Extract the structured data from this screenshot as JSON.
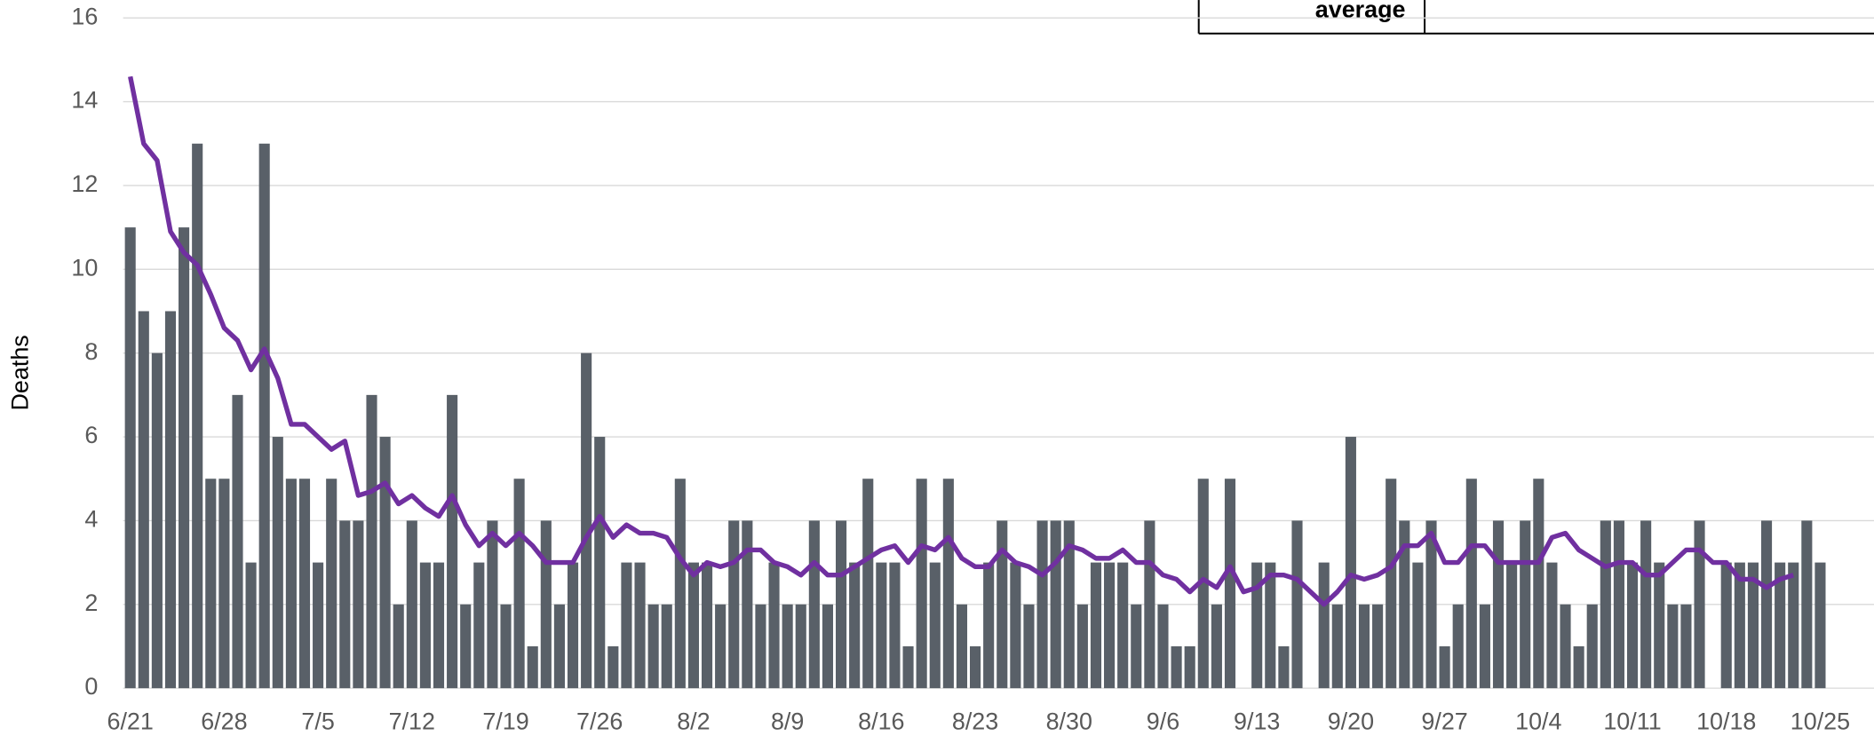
{
  "chart_data": {
    "type": "bar_line",
    "y_label": "Deaths",
    "legend_text": "average",
    "categories": [
      "6/21",
      null,
      null,
      null,
      null,
      null,
      null,
      "6/28",
      null,
      null,
      null,
      null,
      null,
      null,
      "7/5",
      null,
      null,
      null,
      null,
      null,
      null,
      "7/12",
      null,
      null,
      null,
      null,
      null,
      null,
      "7/19",
      null,
      null,
      null,
      null,
      null,
      null,
      "7/26",
      null,
      null,
      null,
      null,
      null,
      null,
      "8/2",
      null,
      null,
      null,
      null,
      null,
      null,
      "8/9",
      null,
      null,
      null,
      null,
      null,
      null,
      "8/16",
      null,
      null,
      null,
      null,
      null,
      null,
      "8/23",
      null,
      null,
      null,
      null,
      null,
      null,
      "8/30",
      null,
      null,
      null,
      null,
      null,
      null,
      "9/6",
      null,
      null,
      null,
      null,
      null,
      null,
      "9/13",
      null,
      null,
      null,
      null,
      null,
      null,
      "9/20",
      null,
      null,
      null,
      null,
      null,
      null,
      "9/27",
      null,
      null,
      null,
      null,
      null,
      null,
      "10/4",
      null,
      null,
      null,
      null,
      null,
      null,
      "10/11",
      null,
      null,
      null,
      null,
      null,
      null,
      "10/18",
      null,
      null,
      null,
      null,
      null,
      null,
      "10/25"
    ],
    "series": [
      {
        "type": "bar",
        "color": "#596068",
        "values": [
          11,
          9,
          8,
          9,
          11,
          13,
          5,
          5,
          7,
          3,
          13,
          6,
          5,
          5,
          3,
          5,
          4,
          4,
          7,
          6,
          2,
          4,
          3,
          3,
          7,
          2,
          3,
          4,
          2,
          5,
          1,
          4,
          2,
          3,
          8,
          6,
          1,
          3,
          3,
          2,
          2,
          5,
          3,
          3,
          2,
          4,
          4,
          2,
          3,
          2,
          2,
          4,
          2,
          4,
          3,
          5,
          3,
          3,
          1,
          5,
          3,
          5,
          2,
          1,
          3,
          4,
          3,
          2,
          4,
          4,
          4,
          2,
          3,
          3,
          3,
          2,
          4,
          2,
          1,
          1,
          5,
          2,
          5,
          0,
          3,
          3,
          1,
          4,
          0,
          3,
          2,
          6,
          2,
          2,
          5,
          4,
          3,
          4,
          1,
          2,
          5,
          2,
          4,
          3,
          4,
          5,
          3,
          2,
          1,
          2,
          4,
          4,
          3,
          4,
          3,
          2,
          2,
          4,
          0,
          3,
          3,
          3,
          4,
          3,
          3,
          4,
          3
        ]
      },
      {
        "type": "line",
        "color": "#7030a0",
        "values": [
          14.6,
          13,
          12.6,
          10.9,
          10.4,
          10.1,
          9.4,
          8.6,
          8.3,
          7.6,
          8.1,
          7.4,
          6.3,
          6.3,
          6.0,
          5.7,
          5.9,
          4.6,
          4.7,
          4.9,
          4.4,
          4.6,
          4.3,
          4.1,
          4.6,
          3.9,
          3.4,
          3.7,
          3.4,
          3.7,
          3.4,
          3.0,
          3.0,
          3.0,
          3.6,
          4.1,
          3.6,
          3.9,
          3.7,
          3.7,
          3.6,
          3.1,
          2.7,
          3.0,
          2.9,
          3.0,
          3.3,
          3.3,
          3.0,
          2.9,
          2.7,
          3.0,
          2.7,
          2.7,
          2.9,
          3.1,
          3.3,
          3.4,
          3.0,
          3.4,
          3.3,
          3.6,
          3.1,
          2.9,
          2.9,
          3.3,
          3.0,
          2.9,
          2.7,
          3.0,
          3.4,
          3.3,
          3.1,
          3.1,
          3.3,
          3.0,
          3.0,
          2.7,
          2.6,
          2.3,
          2.6,
          2.4,
          2.9,
          2.3,
          2.4,
          2.7,
          2.7,
          2.6,
          2.3,
          2.0,
          2.3,
          2.7,
          2.6,
          2.7,
          2.9,
          3.4,
          3.4,
          3.7,
          3.0,
          3.0,
          3.4,
          3.4,
          3.0,
          3.0,
          3.0,
          3.0,
          3.6,
          3.7,
          3.3,
          3.1,
          2.9,
          3.0,
          3.0,
          2.7,
          2.7,
          3.0,
          3.3,
          3.3,
          3.0,
          3.0,
          2.6,
          2.6,
          2.4,
          2.6,
          2.7,
          null,
          null
        ]
      }
    ],
    "ylim": [
      0,
      16
    ],
    "yticks": [
      0,
      2,
      4,
      6,
      8,
      10,
      12,
      14,
      16
    ],
    "grid": true
  }
}
